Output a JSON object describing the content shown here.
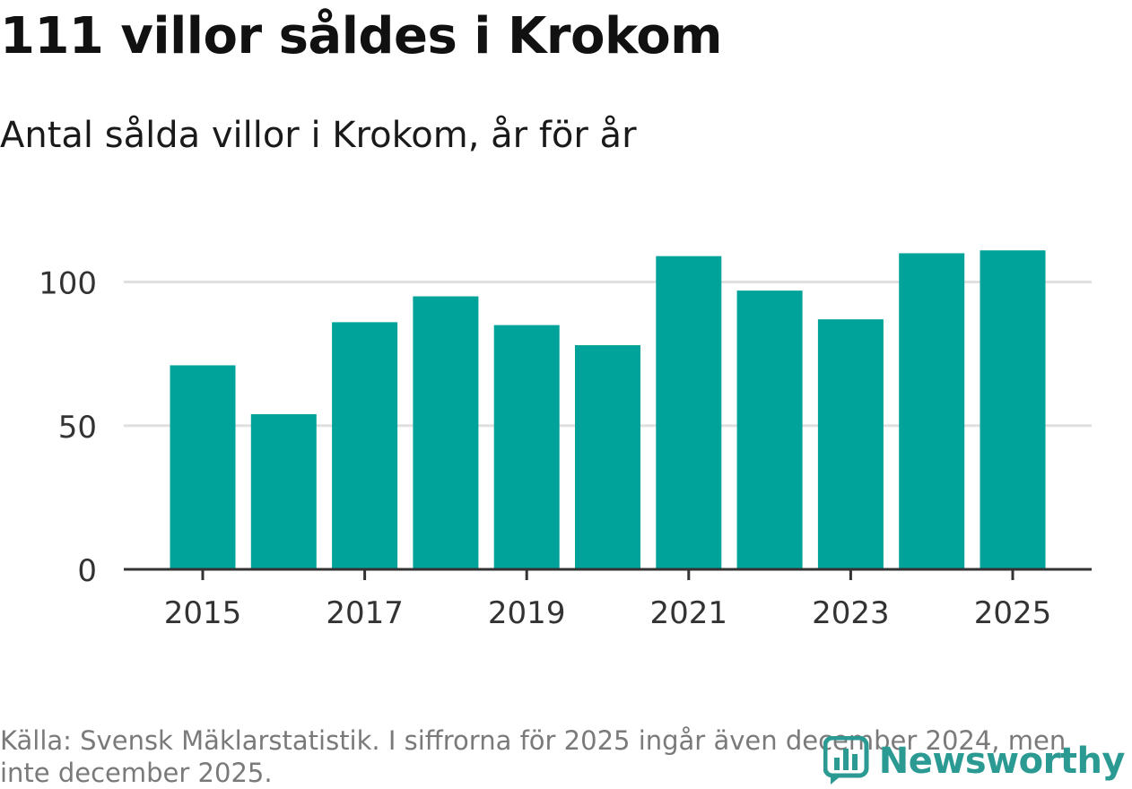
{
  "title": "111 villor såldes i Krokom",
  "subtitle": "Antal sålda villor i Krokom, år för år",
  "source": "Källa: Svensk Mäklarstatistik. I siffrorna för 2025 ingår även december 2024, men inte december 2025.",
  "logo": {
    "text": "Newsworthy",
    "icon": "bar-chart-logo-icon"
  },
  "colors": {
    "bar": "#00a39a",
    "axis": "#333333",
    "grid": "#e0e0e0",
    "logo": "#2a9a93"
  },
  "chart_data": {
    "type": "bar",
    "title": "111 villor såldes i Krokom",
    "xlabel": "",
    "ylabel": "",
    "categories": [
      "2015",
      "2016",
      "2017",
      "2018",
      "2019",
      "2020",
      "2021",
      "2022",
      "2023",
      "2024",
      "2025"
    ],
    "values": [
      71,
      54,
      86,
      95,
      85,
      78,
      109,
      97,
      87,
      110,
      111
    ],
    "ylim": [
      0,
      120
    ],
    "yticks": [
      0,
      50,
      100
    ],
    "xticks": [
      "2015",
      "2017",
      "2019",
      "2021",
      "2023",
      "2025"
    ],
    "grid": true
  }
}
